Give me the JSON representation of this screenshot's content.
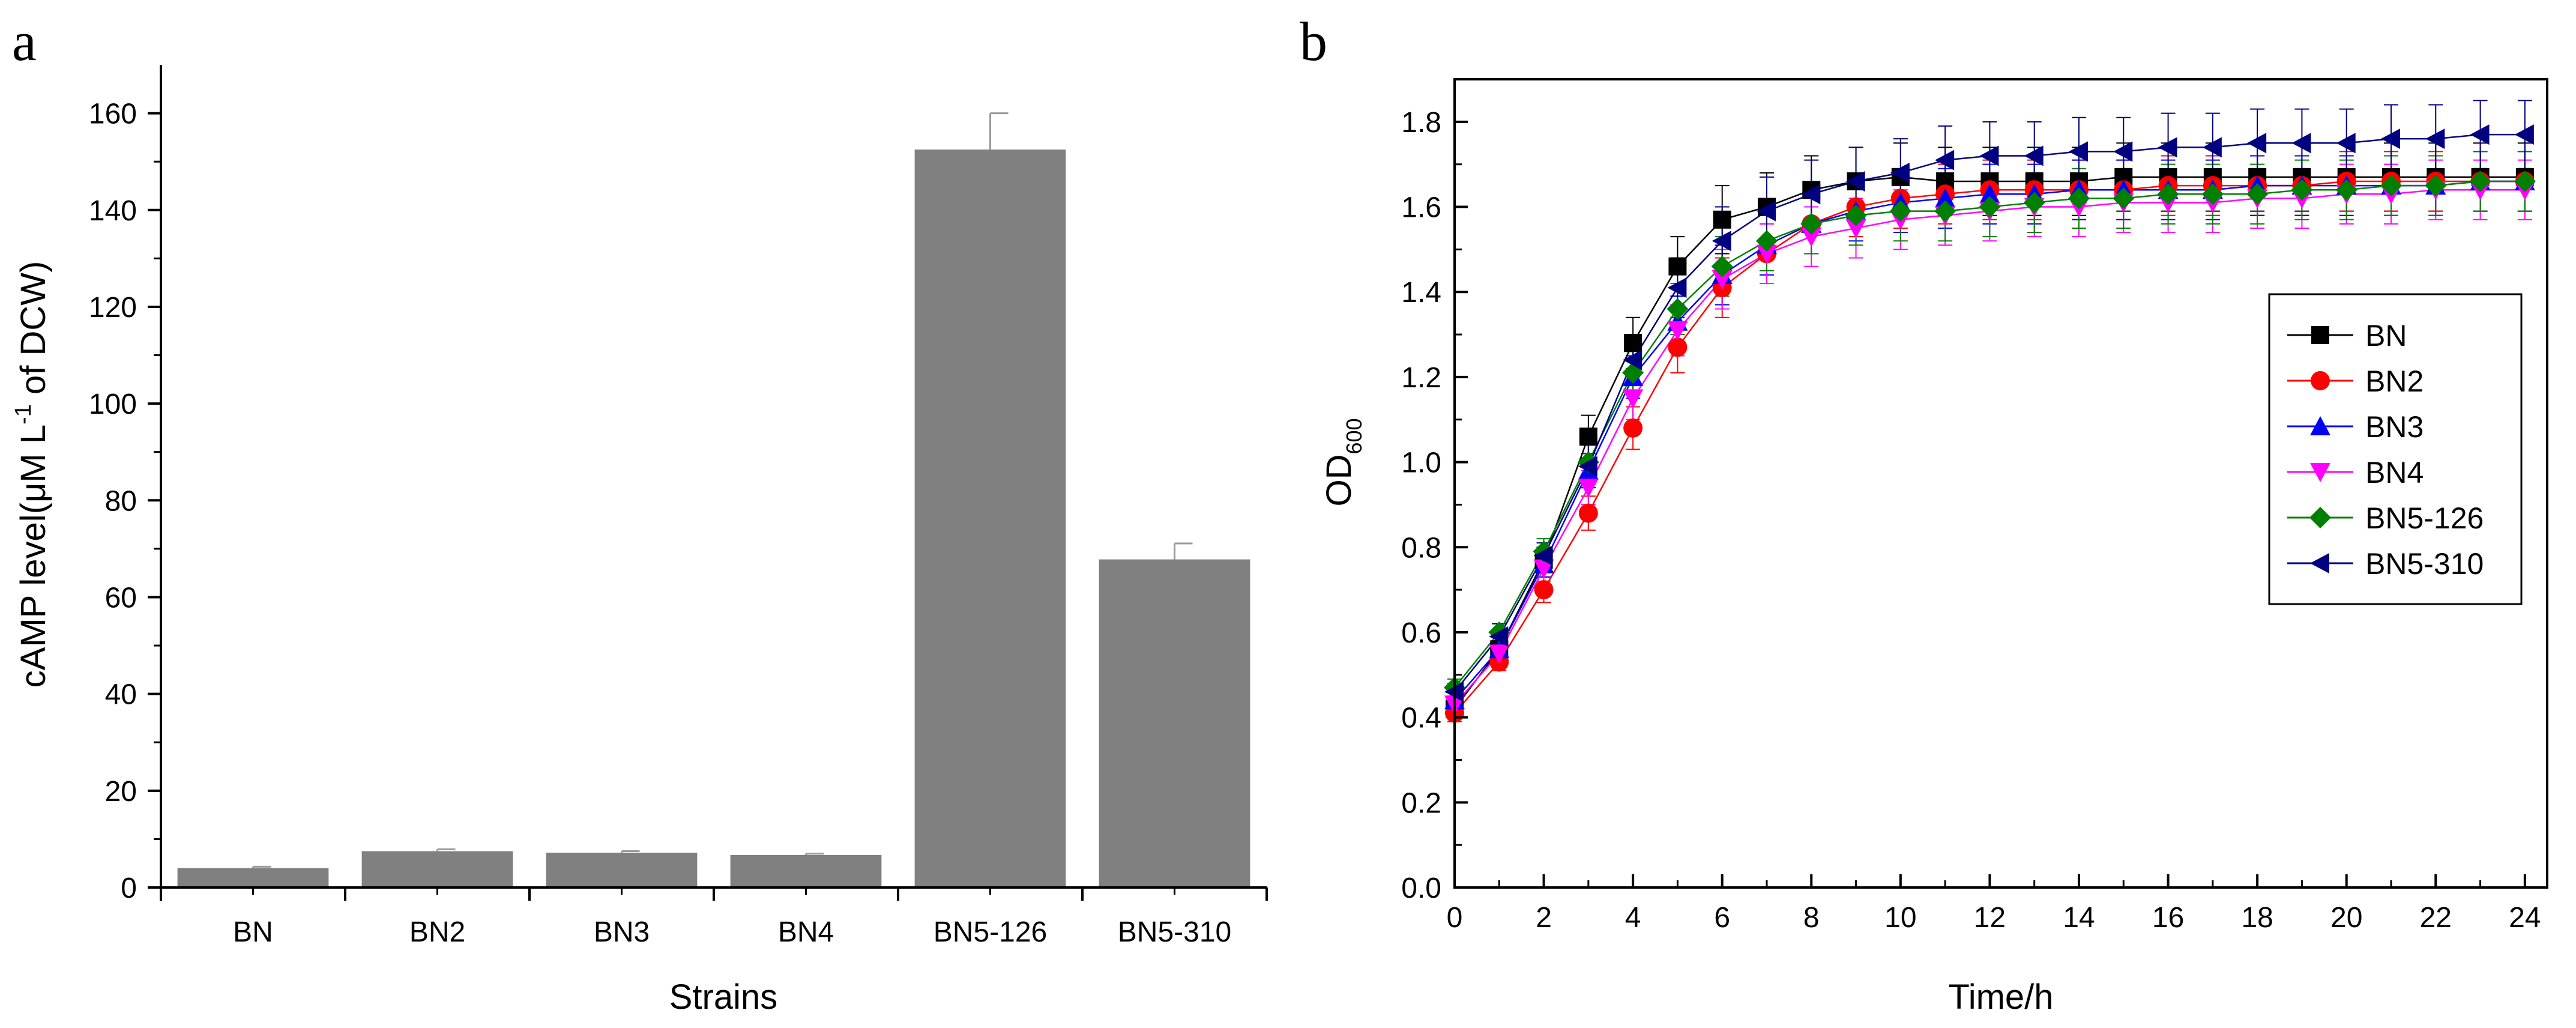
{
  "chart_data": [
    {
      "type": "bar",
      "panel_label": "a",
      "categories": [
        "BN",
        "BN2",
        "BN3",
        "BN4",
        "BN5-126",
        "BN5-310"
      ],
      "values": [
        4,
        7.5,
        7.2,
        6.7,
        152.5,
        67.8
      ],
      "errors": [
        0.3,
        0.4,
        0.3,
        0.3,
        7.5,
        3.3
      ],
      "bar_color": "#808080",
      "error_color": "#9a9a9a",
      "xlabel": "Strains",
      "ylabel": "cAMP level(μM L",
      "ylabel_superscript": "-1",
      "ylabel_suffix": " of DCW)",
      "ylim": [
        0,
        170
      ],
      "yticks": [
        0,
        20,
        40,
        60,
        80,
        100,
        120,
        140,
        160
      ],
      "ytick_labels": [
        "0",
        "20",
        "40",
        "60",
        "80",
        "100",
        "120",
        "140",
        "160"
      ]
    },
    {
      "type": "line",
      "panel_label": "b",
      "xlabel": "Time/h",
      "ylabel": "OD",
      "ylabel_subscript": "600",
      "xlim": [
        0,
        24.5
      ],
      "ylim": [
        0,
        1.9
      ],
      "xticks": [
        0,
        2,
        4,
        6,
        8,
        10,
        12,
        14,
        16,
        18,
        20,
        22,
        24
      ],
      "xtick_labels": [
        "0",
        "2",
        "4",
        "6",
        "8",
        "10",
        "12",
        "14",
        "16",
        "18",
        "20",
        "22",
        "24"
      ],
      "yticks": [
        0,
        0.2,
        0.4,
        0.6,
        0.8,
        1.0,
        1.2,
        1.4,
        1.6,
        1.8
      ],
      "ytick_labels": [
        "0.0",
        "0.2",
        "0.4",
        "0.6",
        "0.8",
        "1.0",
        "1.2",
        "1.4",
        "1.6",
        "1.8"
      ],
      "legend_position": "right",
      "x": [
        0,
        1,
        2,
        3,
        4,
        5,
        6,
        7,
        8,
        9,
        10,
        11,
        12,
        13,
        14,
        15,
        16,
        17,
        18,
        19,
        20,
        21,
        22,
        23,
        24
      ],
      "series": [
        {
          "name": "BN",
          "color": "#000000",
          "marker": "square",
          "values": [
            0.42,
            0.56,
            0.77,
            1.06,
            1.28,
            1.46,
            1.57,
            1.6,
            1.64,
            1.66,
            1.67,
            1.66,
            1.66,
            1.66,
            1.66,
            1.67,
            1.67,
            1.67,
            1.67,
            1.67,
            1.67,
            1.67,
            1.67,
            1.67,
            1.67
          ],
          "error": [
            0.02,
            0.03,
            0.03,
            0.05,
            0.06,
            0.07,
            0.08,
            0.08,
            0.08,
            0.08,
            0.08,
            0.08,
            0.08,
            0.08,
            0.08,
            0.08,
            0.08,
            0.08,
            0.08,
            0.08,
            0.08,
            0.08,
            0.08,
            0.08,
            0.08
          ]
        },
        {
          "name": "BN2",
          "color": "#ff0000",
          "marker": "circle",
          "values": [
            0.41,
            0.53,
            0.7,
            0.88,
            1.08,
            1.27,
            1.41,
            1.49,
            1.56,
            1.6,
            1.62,
            1.63,
            1.64,
            1.64,
            1.64,
            1.64,
            1.65,
            1.65,
            1.65,
            1.65,
            1.66,
            1.66,
            1.66,
            1.66,
            1.66
          ],
          "error": [
            0.02,
            0.02,
            0.03,
            0.04,
            0.05,
            0.06,
            0.07,
            0.07,
            0.07,
            0.07,
            0.07,
            0.07,
            0.07,
            0.07,
            0.07,
            0.07,
            0.07,
            0.07,
            0.07,
            0.07,
            0.07,
            0.07,
            0.07,
            0.07,
            0.07
          ]
        },
        {
          "name": "BN3",
          "color": "#0000ff",
          "marker": "triangle-up",
          "values": [
            0.44,
            0.56,
            0.76,
            0.98,
            1.2,
            1.33,
            1.44,
            1.51,
            1.56,
            1.59,
            1.61,
            1.62,
            1.63,
            1.63,
            1.64,
            1.64,
            1.64,
            1.64,
            1.65,
            1.65,
            1.65,
            1.65,
            1.65,
            1.66,
            1.66
          ],
          "error": [
            0.02,
            0.02,
            0.03,
            0.04,
            0.05,
            0.06,
            0.07,
            0.07,
            0.07,
            0.07,
            0.07,
            0.07,
            0.07,
            0.07,
            0.07,
            0.07,
            0.07,
            0.07,
            0.07,
            0.07,
            0.07,
            0.07,
            0.07,
            0.07,
            0.07
          ]
        },
        {
          "name": "BN4",
          "color": "#ff00ff",
          "marker": "triangle-down",
          "values": [
            0.43,
            0.55,
            0.75,
            0.94,
            1.15,
            1.31,
            1.43,
            1.49,
            1.53,
            1.55,
            1.57,
            1.58,
            1.59,
            1.6,
            1.6,
            1.61,
            1.61,
            1.61,
            1.62,
            1.62,
            1.63,
            1.63,
            1.64,
            1.64,
            1.64
          ],
          "error": [
            0.02,
            0.02,
            0.03,
            0.04,
            0.05,
            0.06,
            0.07,
            0.07,
            0.07,
            0.07,
            0.07,
            0.07,
            0.07,
            0.07,
            0.07,
            0.07,
            0.07,
            0.07,
            0.07,
            0.07,
            0.07,
            0.07,
            0.07,
            0.07,
            0.07
          ]
        },
        {
          "name": "BN5-126",
          "color": "#008000",
          "marker": "diamond",
          "values": [
            0.47,
            0.6,
            0.79,
            1.0,
            1.21,
            1.36,
            1.46,
            1.52,
            1.56,
            1.58,
            1.59,
            1.59,
            1.6,
            1.61,
            1.62,
            1.62,
            1.63,
            1.63,
            1.63,
            1.64,
            1.64,
            1.65,
            1.65,
            1.66,
            1.66
          ],
          "error": [
            0.02,
            0.02,
            0.03,
            0.04,
            0.05,
            0.06,
            0.07,
            0.07,
            0.07,
            0.07,
            0.07,
            0.07,
            0.07,
            0.07,
            0.07,
            0.07,
            0.07,
            0.07,
            0.07,
            0.07,
            0.07,
            0.07,
            0.07,
            0.07,
            0.07
          ]
        },
        {
          "name": "BN5-310",
          "color": "#000080",
          "marker": "triangle-left",
          "values": [
            0.46,
            0.59,
            0.78,
            0.99,
            1.24,
            1.41,
            1.52,
            1.59,
            1.63,
            1.66,
            1.68,
            1.71,
            1.72,
            1.72,
            1.73,
            1.73,
            1.74,
            1.74,
            1.75,
            1.75,
            1.75,
            1.76,
            1.76,
            1.77,
            1.77
          ],
          "error": [
            0.02,
            0.03,
            0.03,
            0.05,
            0.06,
            0.07,
            0.08,
            0.08,
            0.08,
            0.08,
            0.08,
            0.08,
            0.08,
            0.08,
            0.08,
            0.08,
            0.08,
            0.08,
            0.08,
            0.08,
            0.08,
            0.08,
            0.08,
            0.08,
            0.08
          ]
        }
      ]
    }
  ]
}
